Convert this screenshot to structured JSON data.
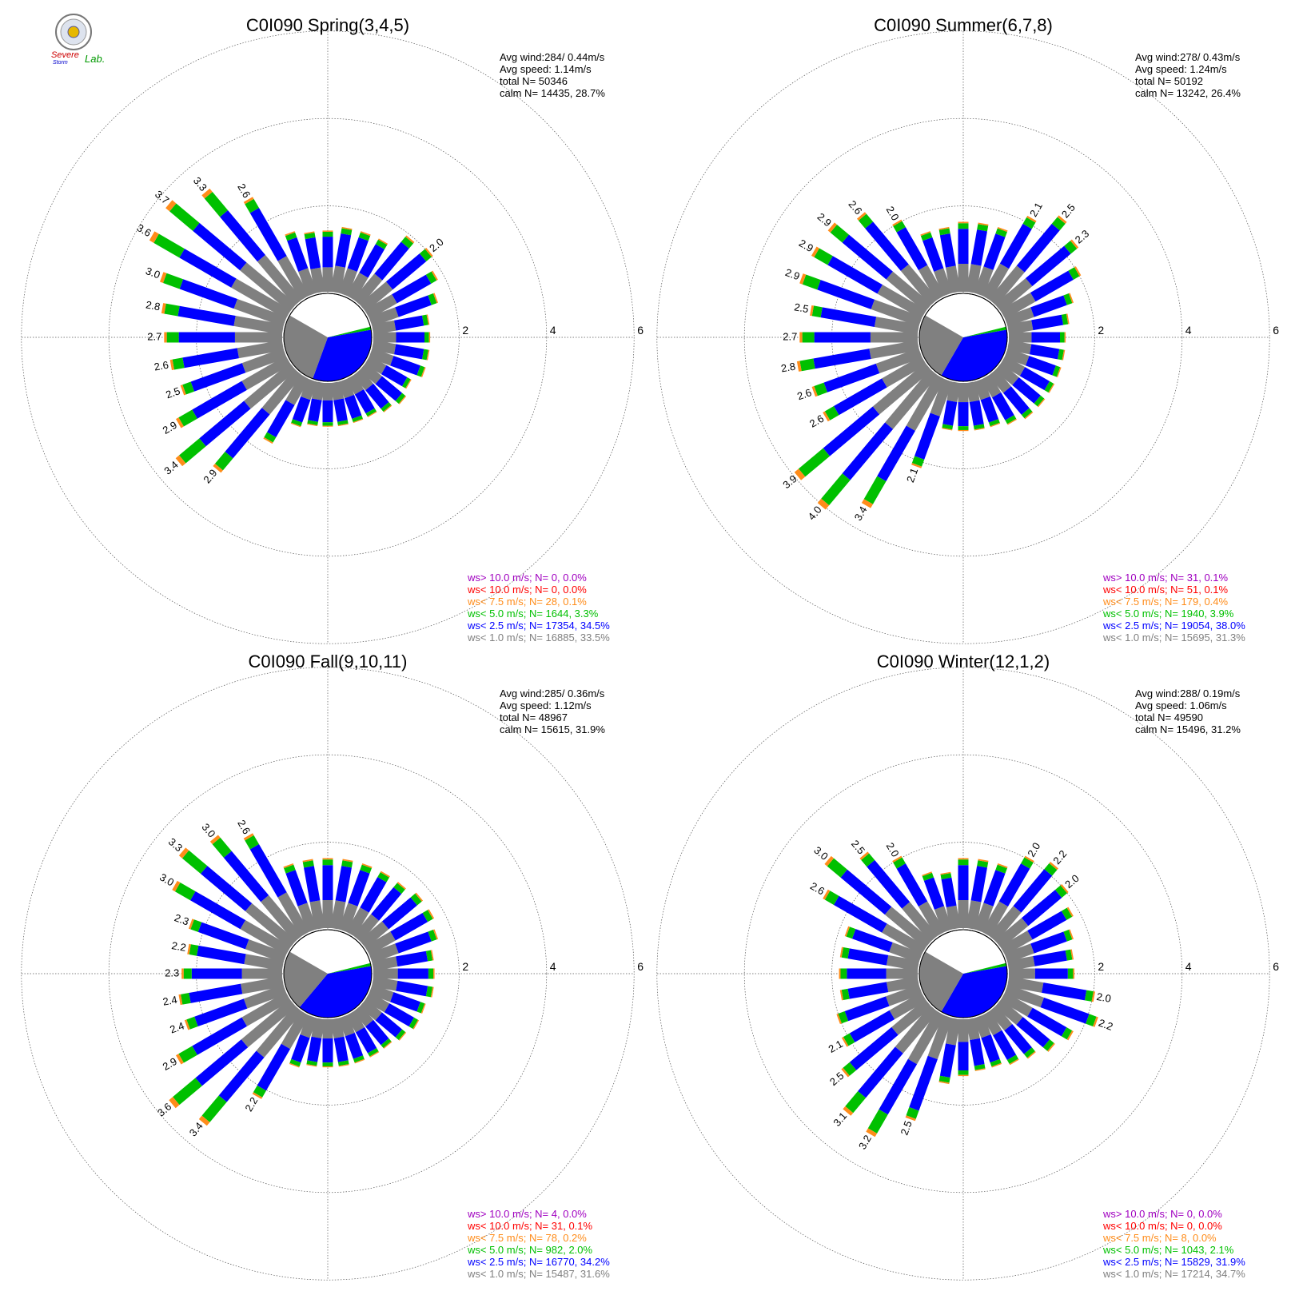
{
  "logo": {
    "line1": "Severe",
    "line2": "Storm",
    "line3": "Lab."
  },
  "colors": {
    "calm_sector": "#808080",
    "bin_1": "#808080",
    "bin_2_5": "#0000ff",
    "bin_5": "#00c000",
    "bin_7_5": "#ff8c1a",
    "bin_10": "#ff0000",
    "bin_gt10": "#a000c0",
    "grid": "#555555"
  },
  "chart_data": [
    {
      "type": "rose",
      "title": "C0I090 Spring(3,4,5)",
      "stats": [
        "Avg wind:284/ 0.44m/s",
        "Avg speed: 1.14m/s",
        "total N=       50346",
        "calm N=  14435,  28.7%"
      ],
      "rings": [
        "2",
        "4",
        "6"
      ],
      "calm_split_deg": [
        80,
        200
      ],
      "bar_directions_deg": [
        0,
        10,
        20,
        30,
        40,
        50,
        60,
        70,
        80,
        90,
        100,
        110,
        120,
        130,
        140,
        150,
        160,
        170,
        180,
        190,
        200,
        210,
        220,
        230,
        240,
        250,
        260,
        270,
        280,
        290,
        300,
        310,
        320,
        330,
        340,
        350
      ],
      "bar_totals": [
        1.4,
        1.5,
        1.5,
        1.5,
        1.9,
        2.0,
        1.8,
        1.6,
        1.3,
        1.3,
        1.3,
        1.3,
        1.1,
        1.2,
        1.1,
        1.0,
        1.0,
        1.0,
        1.0,
        1.0,
        1.1,
        1.7,
        2.9,
        3.4,
        2.9,
        2.5,
        2.6,
        2.7,
        2.8,
        3.0,
        3.6,
        3.7,
        3.3,
        2.6,
        1.5,
        1.4
      ],
      "bar_labels": [
        "",
        "",
        "",
        "",
        "",
        "2.0",
        "",
        "",
        "",
        "",
        "",
        "",
        "",
        "",
        "",
        "",
        "",
        "",
        "",
        "",
        "",
        "",
        "2.9",
        "3.4",
        "2.9",
        "2.5",
        "2.6",
        "2.7",
        "2.8",
        "3.0",
        "3.6",
        "3.7",
        "3.3",
        "2.6",
        "",
        ""
      ],
      "legend": [
        {
          "text": "ws> 10.0 m/s; N=      0,  0.0%",
          "bin": "bin_gt10"
        },
        {
          "text": "ws< 10.0 m/s; N=      0,  0.0%",
          "bin": "bin_10"
        },
        {
          "text": "ws<  7.5 m/s; N=     28,  0.1%",
          "bin": "bin_7_5"
        },
        {
          "text": "ws<  5.0 m/s; N=  1644,  3.3%",
          "bin": "bin_5"
        },
        {
          "text": "ws<  2.5 m/s; N= 17354, 34.5%",
          "bin": "bin_2_5"
        },
        {
          "text": "ws<  1.0 m/s; N= 16885, 33.5%",
          "bin": "bin_1"
        }
      ]
    },
    {
      "type": "rose",
      "title": "C0I090 Summer(6,7,8)",
      "stats": [
        "Avg wind:278/ 0.43m/s",
        "Avg speed: 1.24m/s",
        "total N=       50192",
        "calm N=  13242,  26.4%"
      ],
      "rings": [
        "2",
        "4",
        "6"
      ],
      "calm_split_deg": [
        80,
        210
      ],
      "bar_directions_deg": [
        0,
        10,
        20,
        30,
        40,
        50,
        60,
        70,
        80,
        90,
        100,
        110,
        120,
        130,
        140,
        150,
        160,
        170,
        180,
        190,
        200,
        210,
        220,
        230,
        240,
        250,
        260,
        270,
        280,
        290,
        300,
        310,
        320,
        330,
        340,
        350
      ],
      "bar_totals": [
        1.6,
        1.6,
        1.6,
        2.1,
        2.5,
        2.3,
        2.0,
        1.6,
        1.4,
        1.3,
        1.3,
        1.3,
        1.3,
        1.3,
        1.3,
        1.2,
        1.1,
        1.1,
        1.1,
        1.1,
        2.1,
        3.4,
        4.0,
        3.9,
        2.6,
        2.6,
        2.8,
        2.7,
        2.5,
        2.9,
        2.9,
        2.9,
        2.6,
        2.0,
        1.5,
        1.5
      ],
      "bar_labels": [
        "",
        "",
        "",
        "2.1",
        "2.5",
        "2.3",
        "",
        "",
        "",
        "",
        "",
        "",
        "",
        "",
        "",
        "",
        "",
        "",
        "",
        "",
        "2.1",
        "3.4",
        "4.0",
        "3.9",
        "2.6",
        "2.6",
        "2.8",
        "2.7",
        "2.5",
        "2.9",
        "2.9",
        "2.9",
        "2.6",
        "2.0",
        "",
        ""
      ],
      "legend": [
        {
          "text": "ws> 10.0 m/s; N=     31,  0.1%",
          "bin": "bin_gt10"
        },
        {
          "text": "ws< 10.0 m/s; N=     51,  0.1%",
          "bin": "bin_10"
        },
        {
          "text": "ws<  7.5 m/s; N=    179,  0.4%",
          "bin": "bin_7_5"
        },
        {
          "text": "ws<  5.0 m/s; N=  1940,  3.9%",
          "bin": "bin_5"
        },
        {
          "text": "ws<  2.5 m/s; N= 19054, 38.0%",
          "bin": "bin_2_5"
        },
        {
          "text": "ws<  1.0 m/s; N= 15695, 31.3%",
          "bin": "bin_1"
        }
      ]
    },
    {
      "type": "rose",
      "title": "C0I090 Fall(9,10,11)",
      "stats": [
        "Avg wind:285/ 0.36m/s",
        "Avg speed: 1.12m/s",
        "total N=       48967",
        "calm N=  15615,  31.9%"
      ],
      "rings": [
        "2",
        "4",
        "6"
      ],
      "calm_split_deg": [
        80,
        220
      ],
      "bar_directions_deg": [
        0,
        10,
        20,
        30,
        40,
        50,
        60,
        70,
        80,
        90,
        100,
        110,
        120,
        130,
        140,
        150,
        160,
        170,
        180,
        190,
        200,
        210,
        220,
        230,
        240,
        250,
        260,
        270,
        280,
        290,
        300,
        310,
        320,
        330,
        340,
        350
      ],
      "bar_totals": [
        1.6,
        1.6,
        1.6,
        1.6,
        1.6,
        1.7,
        1.7,
        1.6,
        1.4,
        1.4,
        1.4,
        1.3,
        1.3,
        1.2,
        1.1,
        1.1,
        1.1,
        1.1,
        1.1,
        1.1,
        1.2,
        2.2,
        3.4,
        3.6,
        2.9,
        2.4,
        2.4,
        2.3,
        2.2,
        2.3,
        3.0,
        3.3,
        3.0,
        2.6,
        1.6,
        1.6
      ],
      "bar_labels": [
        "",
        "",
        "",
        "",
        "",
        "",
        "",
        "",
        "",
        "",
        "",
        "",
        "",
        "",
        "",
        "",
        "",
        "",
        "",
        "",
        "",
        "2.2",
        "3.4",
        "3.6",
        "2.9",
        "2.4",
        "2.4",
        "2.3",
        "2.2",
        "2.3",
        "3.0",
        "3.3",
        "3.0",
        "2.6",
        "",
        ""
      ],
      "legend": [
        {
          "text": "ws> 10.0 m/s; N=      4,  0.0%",
          "bin": "bin_gt10"
        },
        {
          "text": "ws< 10.0 m/s; N=     31,  0.1%",
          "bin": "bin_10"
        },
        {
          "text": "ws<  7.5 m/s; N=     78,  0.2%",
          "bin": "bin_7_5"
        },
        {
          "text": "ws<  5.0 m/s; N=    982,  2.0%",
          "bin": "bin_5"
        },
        {
          "text": "ws<  2.5 m/s; N= 16770, 34.2%",
          "bin": "bin_2_5"
        },
        {
          "text": "ws<  1.0 m/s; N= 15487, 31.6%",
          "bin": "bin_1"
        }
      ]
    },
    {
      "type": "rose",
      "title": "C0I090 Winter(12,1,2)",
      "stats": [
        "Avg wind:288/ 0.19m/s",
        "Avg speed: 1.06m/s",
        "total N=       49590",
        "calm N=  15496,  31.2%"
      ],
      "rings": [
        "2",
        "4",
        "6"
      ],
      "calm_split_deg": [
        80,
        210
      ],
      "bar_directions_deg": [
        0,
        10,
        20,
        30,
        40,
        50,
        60,
        70,
        80,
        90,
        100,
        110,
        120,
        130,
        140,
        150,
        160,
        170,
        180,
        190,
        200,
        210,
        220,
        230,
        240,
        250,
        260,
        270,
        280,
        290,
        300,
        310,
        320,
        330,
        340,
        350
      ],
      "bar_totals": [
        1.6,
        1.6,
        1.6,
        2.0,
        2.2,
        2.0,
        1.8,
        1.6,
        1.5,
        1.5,
        2.0,
        2.2,
        1.8,
        1.6,
        1.4,
        1.3,
        1.2,
        1.2,
        1.3,
        1.5,
        2.5,
        3.2,
        3.1,
        2.5,
        2.1,
        2.0,
        1.8,
        1.8,
        1.8,
        1.8,
        2.6,
        3.0,
        2.5,
        2.0,
        1.4,
        1.3
      ],
      "bar_labels": [
        "",
        "",
        "",
        "2.0",
        "2.2",
        "2.0",
        "",
        "",
        "",
        "",
        "2.0",
        "2.2",
        "",
        "",
        "",
        "",
        "",
        "",
        "",
        "",
        "2.5",
        "3.2",
        "3.1",
        "2.5",
        "2.1",
        "",
        "",
        "",
        "",
        "",
        "2.6",
        "3.0",
        "2.5",
        "2.0",
        "",
        ""
      ],
      "legend": [
        {
          "text": "ws> 10.0 m/s; N=      0,  0.0%",
          "bin": "bin_gt10"
        },
        {
          "text": "ws< 10.0 m/s; N=      0,  0.0%",
          "bin": "bin_10"
        },
        {
          "text": "ws<  7.5 m/s; N=      8,  0.0%",
          "bin": "bin_7_5"
        },
        {
          "text": "ws<  5.0 m/s; N=  1043,  2.1%",
          "bin": "bin_5"
        },
        {
          "text": "ws<  2.5 m/s; N= 15829, 31.9%",
          "bin": "bin_2_5"
        },
        {
          "text": "ws<  1.0 m/s; N= 17214, 34.7%",
          "bin": "bin_1"
        }
      ]
    }
  ]
}
